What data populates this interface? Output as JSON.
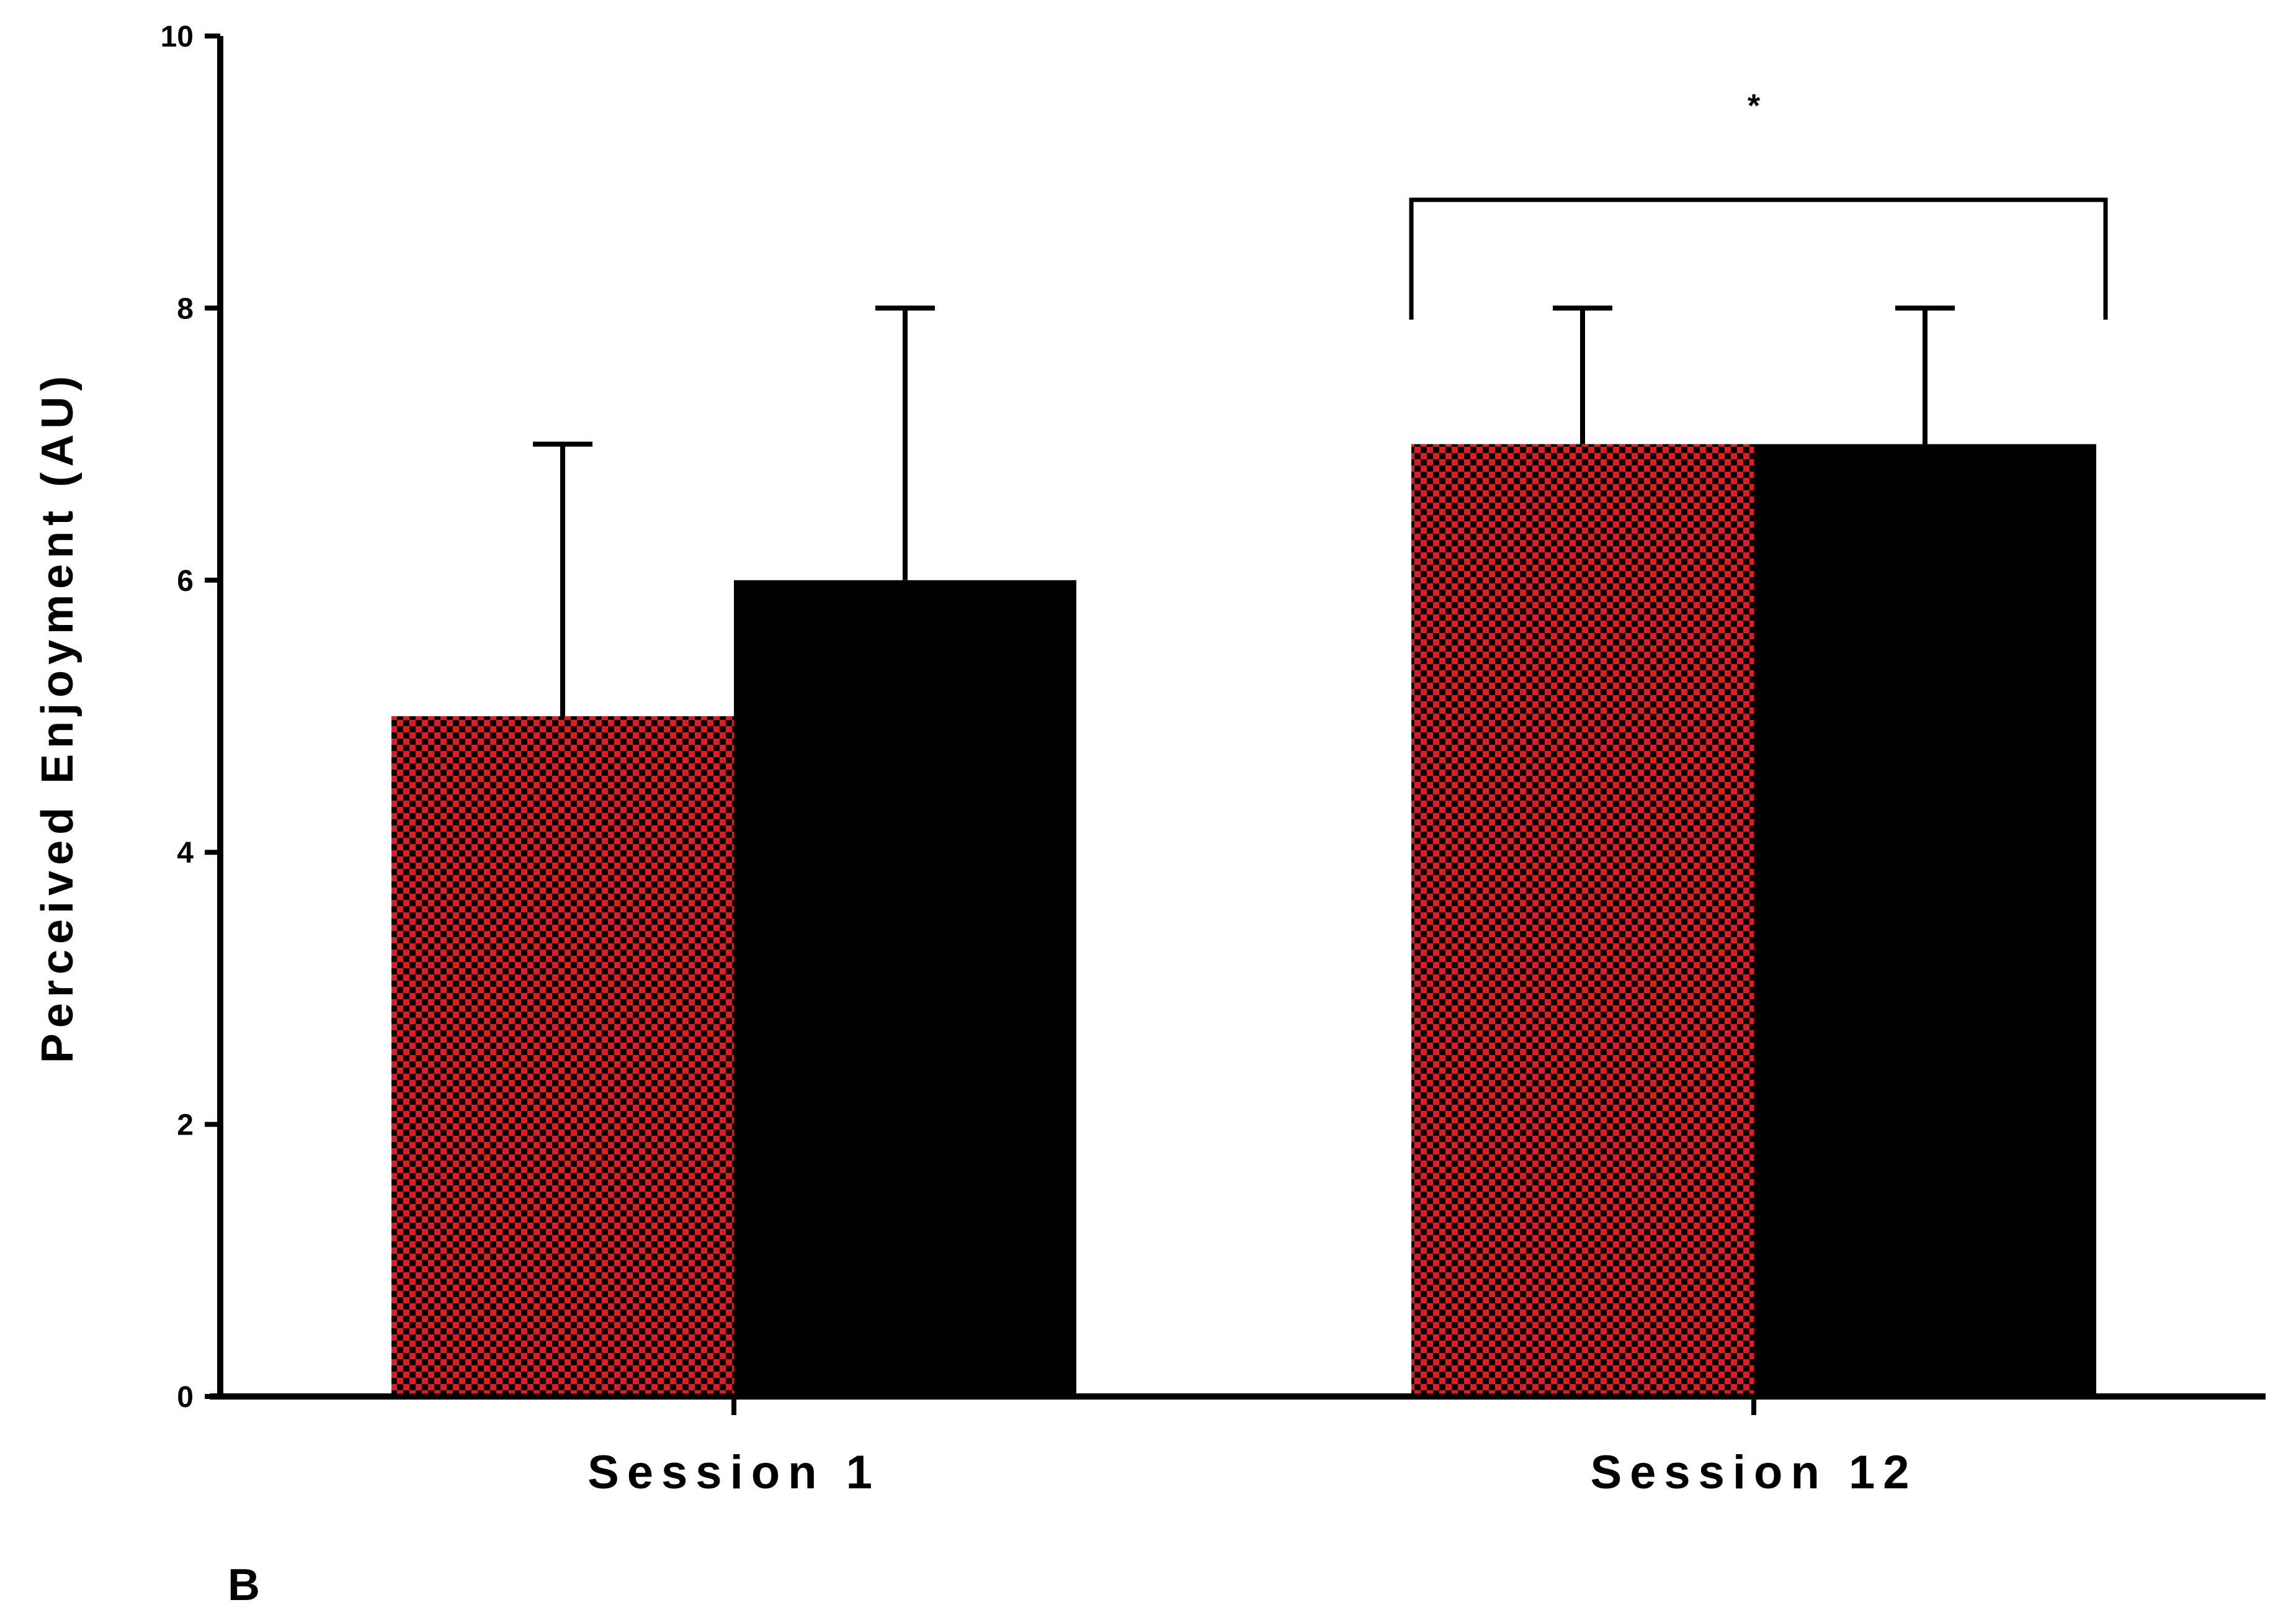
{
  "chart_data": {
    "type": "bar",
    "categories": [
      "Session 1",
      "Session 12"
    ],
    "series": [
      {
        "values": [
          5,
          7
        ],
        "error_upper": [
          7,
          8
        ],
        "color": "#e41a1c",
        "pattern": "red-black-checkerboard"
      },
      {
        "values": [
          6,
          7
        ],
        "error_upper": [
          8,
          8
        ],
        "color": "#000000",
        "pattern": "solid"
      }
    ],
    "ylabel": "Perceived Enjoyment (AU)",
    "xlabel": "",
    "ylim": [
      0,
      10
    ],
    "yticks": [
      "0",
      "2",
      "4",
      "6",
      "8",
      "10"
    ],
    "significance": {
      "category": "Session 12",
      "label": "*"
    },
    "grid": false
  },
  "panel_label": "B"
}
